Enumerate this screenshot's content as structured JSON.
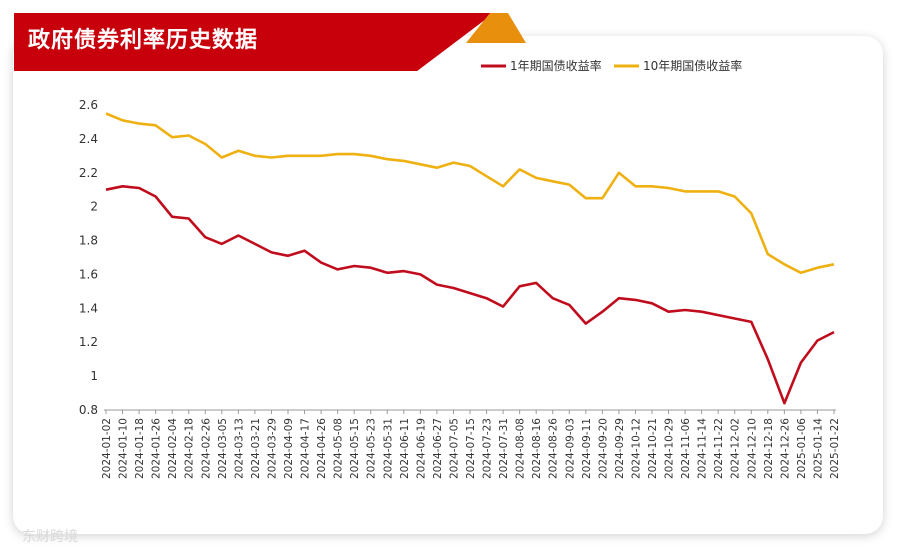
{
  "header": {
    "title": "政府债券利率历史数据"
  },
  "watermark": "东财跨境",
  "colors": {
    "series1": "#c00d1e",
    "series2": "#efb012",
    "banner": "#c8000b",
    "accent": "#e88f0d"
  },
  "chart_data": {
    "type": "line",
    "title": "政府债券利率历史数据",
    "xlabel": "",
    "ylabel": "",
    "ylim": [
      0.8,
      2.6
    ],
    "yticks": [
      0.8,
      1,
      1.2,
      1.4,
      1.6,
      1.8,
      2,
      2.2,
      2.4,
      2.6
    ],
    "legend_position": "top-right",
    "grid": false,
    "x": [
      "2024-01-02",
      "2024-01-10",
      "2024-01-18",
      "2024-01-26",
      "2024-02-04",
      "2024-02-18",
      "2024-02-26",
      "2024-03-05",
      "2024-03-13",
      "2024-03-21",
      "2024-03-29",
      "2024-04-09",
      "2024-04-17",
      "2024-04-26",
      "2024-05-08",
      "2024-05-15",
      "2024-05-23",
      "2024-05-31",
      "2024-06-11",
      "2024-06-19",
      "2024-06-27",
      "2024-07-05",
      "2024-07-15",
      "2024-07-23",
      "2024-07-31",
      "2024-08-08",
      "2024-08-16",
      "2024-08-26",
      "2024-09-03",
      "2024-09-11",
      "2024-09-20",
      "2024-09-29",
      "2024-10-12",
      "2024-10-21",
      "2024-10-29",
      "2024-11-06",
      "2024-11-14",
      "2024-11-22",
      "2024-12-02",
      "2024-12-10",
      "2024-12-18",
      "2024-12-26",
      "2025-01-06",
      "2025-01-14",
      "2025-01-22"
    ],
    "series": [
      {
        "name": "1年期国债收益率",
        "values": [
          2.1,
          2.12,
          2.11,
          2.06,
          1.94,
          1.93,
          1.82,
          1.78,
          1.83,
          1.78,
          1.73,
          1.71,
          1.74,
          1.67,
          1.63,
          1.65,
          1.64,
          1.61,
          1.62,
          1.6,
          1.54,
          1.52,
          1.49,
          1.46,
          1.41,
          1.53,
          1.55,
          1.46,
          1.42,
          1.31,
          1.38,
          1.46,
          1.45,
          1.43,
          1.38,
          1.39,
          1.38,
          1.36,
          1.34,
          1.32,
          1.1,
          0.84,
          1.08,
          1.21,
          1.26
        ]
      },
      {
        "name": "10年期国债收益率",
        "values": [
          2.55,
          2.51,
          2.49,
          2.48,
          2.41,
          2.42,
          2.37,
          2.29,
          2.33,
          2.3,
          2.29,
          2.3,
          2.3,
          2.3,
          2.31,
          2.31,
          2.3,
          2.28,
          2.27,
          2.25,
          2.23,
          2.26,
          2.24,
          2.18,
          2.12,
          2.22,
          2.17,
          2.15,
          2.13,
          2.05,
          2.05,
          2.2,
          2.12,
          2.12,
          2.11,
          2.09,
          2.09,
          2.09,
          2.06,
          1.96,
          1.72,
          1.66,
          1.61,
          1.64,
          1.66
        ]
      }
    ]
  }
}
